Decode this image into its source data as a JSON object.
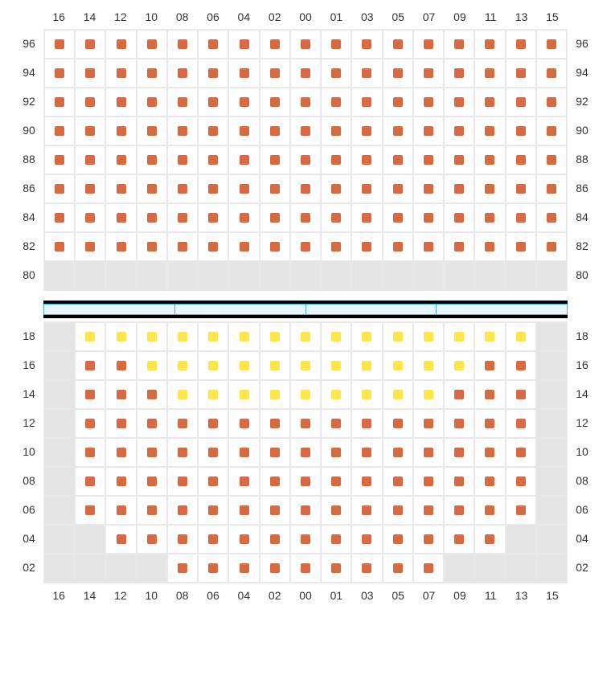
{
  "colors": {
    "seat_orange": "#d96a3f",
    "seat_yellow": "#ffe646",
    "unavailable_bg": "#e5e5e5",
    "grid_border": "#e8e8e8",
    "blue_border": "#3fb0e8",
    "blue_fill": "#e8f6fd",
    "text": "#333333"
  },
  "columns": [
    "16",
    "14",
    "12",
    "10",
    "08",
    "06",
    "04",
    "02",
    "00",
    "01",
    "03",
    "05",
    "07",
    "09",
    "11",
    "13",
    "15"
  ],
  "upper": {
    "rows": [
      "96",
      "94",
      "92",
      "90",
      "88",
      "86",
      "84",
      "82",
      "80"
    ],
    "cells": [
      [
        "o",
        "o",
        "o",
        "o",
        "o",
        "o",
        "o",
        "o",
        "o",
        "o",
        "o",
        "o",
        "o",
        "o",
        "o",
        "o",
        "o"
      ],
      [
        "o",
        "o",
        "o",
        "o",
        "o",
        "o",
        "o",
        "o",
        "o",
        "o",
        "o",
        "o",
        "o",
        "o",
        "o",
        "o",
        "o"
      ],
      [
        "o",
        "o",
        "o",
        "o",
        "o",
        "o",
        "o",
        "o",
        "o",
        "o",
        "o",
        "o",
        "o",
        "o",
        "o",
        "o",
        "o"
      ],
      [
        "o",
        "o",
        "o",
        "o",
        "o",
        "o",
        "o",
        "o",
        "o",
        "o",
        "o",
        "o",
        "o",
        "o",
        "o",
        "o",
        "o"
      ],
      [
        "o",
        "o",
        "o",
        "o",
        "o",
        "o",
        "o",
        "o",
        "o",
        "o",
        "o",
        "o",
        "o",
        "o",
        "o",
        "o",
        "o"
      ],
      [
        "o",
        "o",
        "o",
        "o",
        "o",
        "o",
        "o",
        "o",
        "o",
        "o",
        "o",
        "o",
        "o",
        "o",
        "o",
        "o",
        "o"
      ],
      [
        "o",
        "o",
        "o",
        "o",
        "o",
        "o",
        "o",
        "o",
        "o",
        "o",
        "o",
        "o",
        "o",
        "o",
        "o",
        "o",
        "o"
      ],
      [
        "o",
        "o",
        "o",
        "o",
        "o",
        "o",
        "o",
        "o",
        "o",
        "o",
        "o",
        "o",
        "o",
        "o",
        "o",
        "o",
        "o"
      ],
      [
        "u",
        "u",
        "u",
        "u",
        "u",
        "u",
        "u",
        "u",
        "u",
        "u",
        "u",
        "u",
        "u",
        "u",
        "u",
        "u",
        "u"
      ]
    ]
  },
  "stage_segments": 4,
  "lower": {
    "rows": [
      "18",
      "16",
      "14",
      "12",
      "10",
      "08",
      "06",
      "04",
      "02"
    ],
    "cells": [
      [
        "u",
        "y",
        "y",
        "y",
        "y",
        "y",
        "y",
        "y",
        "y",
        "y",
        "y",
        "y",
        "y",
        "y",
        "y",
        "y",
        "u"
      ],
      [
        "u",
        "o",
        "o",
        "y",
        "y",
        "y",
        "y",
        "y",
        "y",
        "y",
        "y",
        "y",
        "y",
        "y",
        "o",
        "o",
        "u"
      ],
      [
        "u",
        "o",
        "o",
        "o",
        "y",
        "y",
        "y",
        "y",
        "y",
        "y",
        "y",
        "y",
        "y",
        "o",
        "o",
        "o",
        "u"
      ],
      [
        "u",
        "o",
        "o",
        "o",
        "o",
        "o",
        "o",
        "o",
        "o",
        "o",
        "o",
        "o",
        "o",
        "o",
        "o",
        "o",
        "u"
      ],
      [
        "u",
        "o",
        "o",
        "o",
        "o",
        "o",
        "o",
        "o",
        "o",
        "o",
        "o",
        "o",
        "o",
        "o",
        "o",
        "o",
        "u"
      ],
      [
        "u",
        "o",
        "o",
        "o",
        "o",
        "o",
        "o",
        "o",
        "o",
        "o",
        "o",
        "o",
        "o",
        "o",
        "o",
        "o",
        "u"
      ],
      [
        "u",
        "o",
        "o",
        "o",
        "o",
        "o",
        "o",
        "o",
        "o",
        "o",
        "o",
        "o",
        "o",
        "o",
        "o",
        "o",
        "u"
      ],
      [
        "u",
        "u",
        "o",
        "o",
        "o",
        "o",
        "o",
        "o",
        "o",
        "o",
        "o",
        "o",
        "o",
        "o",
        "o",
        "u",
        "u"
      ],
      [
        "u",
        "u",
        "u",
        "u",
        "o",
        "o",
        "o",
        "o",
        "o",
        "o",
        "o",
        "o",
        "o",
        "u",
        "u",
        "u",
        "u"
      ]
    ]
  }
}
